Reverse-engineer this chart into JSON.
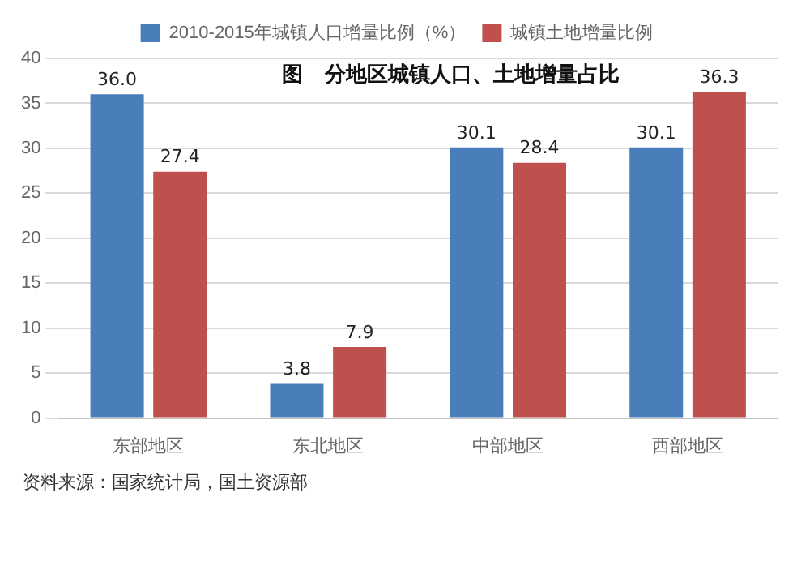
{
  "chart_data": {
    "type": "bar",
    "title": "图   分地区城镇人口、土地增量占比",
    "categories": [
      "东部地区",
      "东北地区",
      "中部地区",
      "西部地区"
    ],
    "series": [
      {
        "name": "2010-2015年城镇人口增量比例（%）",
        "color": "#4a7ebb",
        "values": [
          36.0,
          3.8,
          30.1,
          30.1
        ],
        "value_labels": [
          "36.0",
          "3.8",
          "30.1",
          "30.1"
        ]
      },
      {
        "name": "城镇土地增量比例",
        "color": "#c0504d",
        "values": [
          27.4,
          7.9,
          28.4,
          36.3
        ],
        "value_labels": [
          "27.4",
          "7.9",
          "28.4",
          "36.3"
        ]
      }
    ],
    "ylim": [
      0,
      40
    ],
    "yticks": [
      0,
      5,
      10,
      15,
      20,
      25,
      30,
      35,
      40
    ],
    "grid": "y",
    "legend": "top",
    "annotations": [
      "资料来源：国家统计局，国土资源部"
    ]
  }
}
